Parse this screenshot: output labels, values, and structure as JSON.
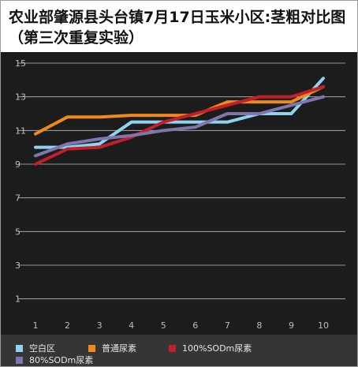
{
  "chart_data": {
    "type": "line",
    "title": "农业部肇源县头台镇7月17日玉米小区:茎粗对比图（第三次重复实验）",
    "x": [
      1,
      2,
      3,
      4,
      5,
      6,
      7,
      8,
      9,
      10
    ],
    "x_tick_labels": [
      "1",
      "2",
      "3",
      "4",
      "5",
      "6",
      "7",
      "8",
      "9",
      "10"
    ],
    "ylim": [
      0,
      15
    ],
    "y_ticks": [
      1,
      3,
      5,
      7,
      9,
      11,
      13,
      15
    ],
    "y_tick_labels": [
      "1",
      "3",
      "5",
      "7",
      "9",
      "11",
      "13",
      "15"
    ],
    "grid": true,
    "legend_position": "bottom",
    "series": [
      {
        "name": "空白区",
        "color": "#8fd3f0",
        "values": [
          10.0,
          10.0,
          10.2,
          11.5,
          11.5,
          11.5,
          11.5,
          12.0,
          12.0,
          14.1
        ]
      },
      {
        "name": "普通尿素",
        "color": "#ef8a1a",
        "values": [
          10.8,
          11.8,
          11.8,
          11.9,
          11.9,
          11.9,
          12.7,
          12.7,
          12.7,
          13.6
        ]
      },
      {
        "name": "100%SODm尿素",
        "color": "#c21f2a",
        "values": [
          9.0,
          9.9,
          10.0,
          10.6,
          11.5,
          12.0,
          12.5,
          13.0,
          13.0,
          13.6
        ]
      },
      {
        "name": "80%SODm尿素",
        "color": "#7d77ad",
        "values": [
          9.5,
          10.2,
          10.5,
          10.7,
          11.0,
          11.2,
          12.0,
          12.0,
          12.5,
          13.0
        ]
      }
    ]
  }
}
